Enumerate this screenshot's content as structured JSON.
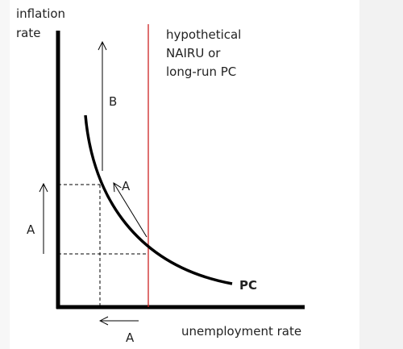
{
  "diagram": {
    "y_axis_label_line1": "inflation",
    "y_axis_label_line2": "rate",
    "x_axis_label": "unemployment rate",
    "nairu_label_line1": "hypothetical",
    "nairu_label_line2": "NAIRU or",
    "nairu_label_line3": "long-run PC",
    "curve_label": "PC",
    "arrow_label_b": "B",
    "arrow_label_a_diagonal": "A",
    "arrow_label_a_vertical": "A",
    "arrow_label_a_horizontal": "A"
  },
  "colors": {
    "axis": "#000000",
    "curve": "#000000",
    "nairu_line": "#cc2222",
    "text": "#222222",
    "background": "#ffffff"
  }
}
